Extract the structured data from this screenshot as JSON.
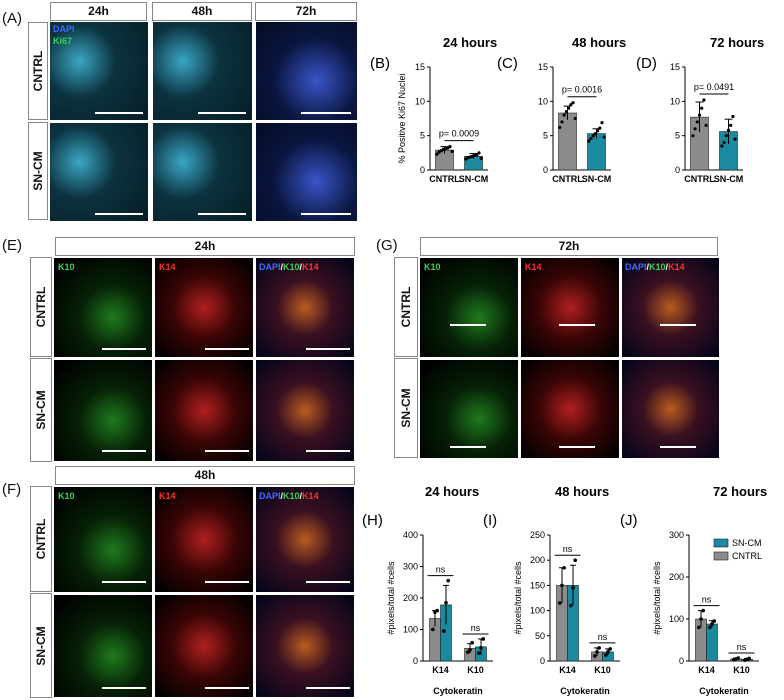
{
  "panel_labels": {
    "A": "(A)",
    "B": "(B)",
    "C": "(C)",
    "D": "(D)",
    "E": "(E)",
    "F": "(F)",
    "G": "(G)",
    "H": "(H)",
    "I": "(I)",
    "J": "(J)"
  },
  "panelA": {
    "headers": [
      "24h",
      "48h",
      "72h"
    ],
    "rows": [
      "CNTRL",
      "SN-CM"
    ],
    "overlay": {
      "dapi": "DAPI",
      "ki67": "Ki67"
    }
  },
  "panelE": {
    "header": "24h",
    "rows": [
      "CNTRL",
      "SN-CM"
    ],
    "cols": {
      "k10": "K10",
      "k14": "K14",
      "dapi": "DAPI",
      "sep": "/",
      "k10b": "K10",
      "sep2": "/",
      "k14b": "K14"
    }
  },
  "panelF": {
    "header": "48h",
    "rows": [
      "CNTRL",
      "SN-CM"
    ],
    "cols": {
      "k10": "K10",
      "k14": "K14",
      "dapi": "DAPI",
      "sep": "/",
      "k10b": "K10",
      "sep2": "/",
      "k14b": "K14"
    }
  },
  "panelG": {
    "header": "72h",
    "rows": [
      "CNTRL",
      "SN-CM"
    ],
    "cols": {
      "k10": "K10",
      "k14": "K14",
      "dapi": "DAPI",
      "sep": "/",
      "k10b": "K10",
      "sep2": "/",
      "k14b": "K14"
    }
  },
  "colors": {
    "cntrl": "#8c8c8c",
    "sncm": "#1b8aa0",
    "green": "#39d353",
    "red": "#ff3030",
    "blue": "#3f6bff"
  },
  "chart_data": [
    {
      "id": "B",
      "type": "bar",
      "title": "24 hours",
      "ylabel": "% Positive Ki67 Nuclei",
      "ylim": [
        0,
        15
      ],
      "yticks": [
        0,
        5,
        10,
        15
      ],
      "categories": [
        "CNTRL",
        "SN-CM"
      ],
      "values": [
        2.9,
        2.0
      ],
      "errors": [
        0.5,
        0.4
      ],
      "pvalue": "p= 0.0009",
      "points": [
        [
          2.3,
          2.6,
          2.8,
          3.0,
          3.1,
          3.2,
          3.4,
          2.7
        ],
        [
          1.6,
          1.8,
          1.9,
          2.0,
          2.1,
          2.2,
          2.5,
          1.7
        ]
      ]
    },
    {
      "id": "C",
      "type": "bar",
      "title": "48 hours",
      "ylabel": "",
      "ylim": [
        0,
        15
      ],
      "yticks": [
        0,
        5,
        10,
        15
      ],
      "categories": [
        "CNTRL",
        "SN-CM"
      ],
      "values": [
        8.3,
        5.3
      ],
      "errors": [
        1.0,
        0.7
      ],
      "pvalue": "p= 0.0016",
      "points": [
        [
          6.2,
          7.0,
          8.0,
          8.5,
          9.0,
          9.5,
          9.8,
          7.5
        ],
        [
          4.2,
          4.6,
          5.0,
          5.3,
          5.7,
          6.1,
          6.9,
          4.8
        ]
      ]
    },
    {
      "id": "D",
      "type": "bar",
      "title": "72 hours",
      "ylabel": "",
      "ylim": [
        0,
        15
      ],
      "yticks": [
        0,
        5,
        10,
        15
      ],
      "categories": [
        "CNTRL",
        "SN-CM"
      ],
      "values": [
        7.7,
        5.6
      ],
      "errors": [
        2.2,
        1.8
      ],
      "pvalue": "p= 0.0491",
      "points": [
        [
          5.0,
          6.0,
          7.0,
          8.0,
          9.0,
          10.2,
          6.5
        ],
        [
          3.5,
          4.0,
          5.0,
          5.8,
          6.5,
          7.8,
          4.5
        ]
      ]
    },
    {
      "id": "H",
      "type": "bar",
      "title": "24 hours",
      "ylabel": "#pixels/total #cells",
      "xlabel": "Cytokeratin",
      "ylim": [
        0,
        400
      ],
      "yticks": [
        0,
        100,
        200,
        300,
        400
      ],
      "categories": [
        "K14",
        "K10"
      ],
      "series": [
        {
          "name": "CNTRL",
          "values": [
            135,
            40
          ],
          "errors": [
            25,
            15
          ],
          "points": [
            [
              100,
              155,
              160
            ],
            [
              28,
              35,
              58
            ]
          ]
        },
        {
          "name": "SN-CM",
          "values": [
            178,
            45
          ],
          "errors": [
            62,
            25
          ],
          "points": [
            [
              95,
              185,
              255
            ],
            [
              25,
              42,
              70
            ]
          ]
        }
      ],
      "sig": [
        "ns",
        "ns"
      ]
    },
    {
      "id": "I",
      "type": "bar",
      "title": "48 hours",
      "ylabel": "#pixels/total #cells",
      "xlabel": "Cytokeratin",
      "ylim": [
        0,
        250
      ],
      "yticks": [
        0,
        50,
        100,
        150,
        200,
        250
      ],
      "categories": [
        "K14",
        "K10"
      ],
      "series": [
        {
          "name": "CNTRL",
          "values": [
            150,
            18
          ],
          "errors": [
            35,
            8
          ],
          "points": [
            [
              115,
              150,
              185
            ],
            [
              10,
              18,
              26
            ]
          ]
        },
        {
          "name": "SN-CM",
          "values": [
            150,
            18
          ],
          "errors": [
            40,
            6
          ],
          "points": [
            [
              110,
              145,
              200
            ],
            [
              12,
              18,
              24
            ]
          ]
        }
      ],
      "sig": [
        "ns",
        "ns"
      ]
    },
    {
      "id": "J",
      "type": "bar",
      "title": "72 hours",
      "ylabel": "#pixels/total #cells",
      "xlabel": "Cytokeratin",
      "ylim": [
        0,
        300
      ],
      "yticks": [
        0,
        100,
        200,
        300
      ],
      "categories": [
        "K14",
        "K10"
      ],
      "series": [
        {
          "name": "CNTRL",
          "values": [
            100,
            5
          ],
          "errors": [
            20,
            2
          ],
          "points": [
            [
              80,
              100,
              120
            ],
            [
              3,
              5,
              7
            ]
          ]
        },
        {
          "name": "SN-CM",
          "values": [
            88,
            4
          ],
          "errors": [
            8,
            2
          ],
          "points": [
            [
              80,
              88,
              95
            ],
            [
              2,
              4,
              6
            ]
          ]
        }
      ],
      "sig": [
        "ns",
        "ns"
      ],
      "legend": [
        "SN-CM",
        "CNTRL"
      ]
    }
  ]
}
